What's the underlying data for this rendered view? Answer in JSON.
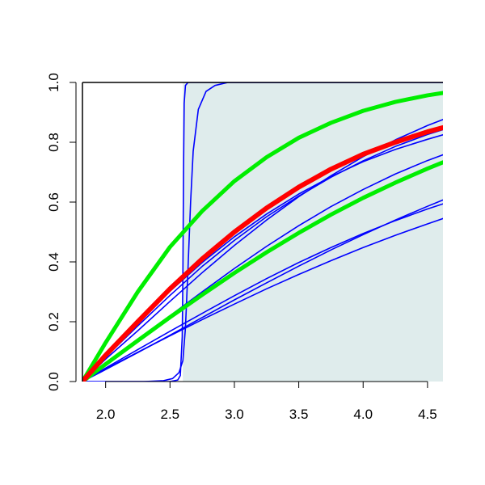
{
  "chart_data": {
    "type": "line",
    "xlim": [
      1.82,
      4.62
    ],
    "ylim": [
      0,
      1
    ],
    "x_ticks": [
      {
        "value": 2.0,
        "label": "2.0"
      },
      {
        "value": 2.5,
        "label": "2.5"
      },
      {
        "value": 3.0,
        "label": "3.0"
      },
      {
        "value": 3.5,
        "label": "3.5"
      },
      {
        "value": 4.0,
        "label": "4.0"
      },
      {
        "value": 4.5,
        "label": "4.5"
      }
    ],
    "y_ticks": [
      {
        "value": 0.0,
        "label": "0.0"
      },
      {
        "value": 0.2,
        "label": "0.2"
      },
      {
        "value": 0.4,
        "label": "0.4"
      },
      {
        "value": 0.6,
        "label": "0.6"
      },
      {
        "value": 0.8,
        "label": "0.8"
      },
      {
        "value": 1.0,
        "label": "1.0"
      }
    ],
    "shaded_region": {
      "x_from": 2.6,
      "x_to": 4.62,
      "y_from": 0,
      "y_to": 1,
      "color": "#dfecec"
    },
    "grid": false,
    "series": [
      {
        "color": "#0000ff",
        "width": 1.6,
        "points": [
          [
            1.82,
            0
          ],
          [
            2.3,
            0
          ],
          [
            2.5,
            0.0
          ],
          [
            2.56,
            0.005
          ],
          [
            2.58,
            0.02
          ],
          [
            2.595,
            0.15
          ],
          [
            2.6,
            0.35
          ],
          [
            2.605,
            0.7
          ],
          [
            2.61,
            0.93
          ],
          [
            2.62,
            0.99
          ],
          [
            2.64,
            1.0
          ],
          [
            4.62,
            1.0
          ]
        ]
      },
      {
        "color": "#0000ff",
        "width": 1.6,
        "points": [
          [
            1.82,
            0
          ],
          [
            2.3,
            0.0
          ],
          [
            2.45,
            0.003
          ],
          [
            2.52,
            0.01
          ],
          [
            2.57,
            0.03
          ],
          [
            2.6,
            0.07
          ],
          [
            2.62,
            0.18
          ],
          [
            2.64,
            0.38
          ],
          [
            2.66,
            0.6
          ],
          [
            2.68,
            0.77
          ],
          [
            2.72,
            0.91
          ],
          [
            2.78,
            0.97
          ],
          [
            2.85,
            0.99
          ],
          [
            2.95,
            1.0
          ],
          [
            4.62,
            1.0
          ]
        ]
      },
      {
        "color": "#0000ff",
        "width": 1.6,
        "points": [
          [
            1.82,
            0
          ],
          [
            2.0,
            0.087
          ],
          [
            2.25,
            0.197
          ],
          [
            2.5,
            0.302
          ],
          [
            2.75,
            0.398
          ],
          [
            3.0,
            0.484
          ],
          [
            3.25,
            0.56
          ],
          [
            3.5,
            0.627
          ],
          [
            3.75,
            0.685
          ],
          [
            4.0,
            0.735
          ],
          [
            4.25,
            0.776
          ],
          [
            4.5,
            0.81
          ],
          [
            4.62,
            0.825
          ]
        ]
      },
      {
        "color": "#0000ff",
        "width": 1.6,
        "points": [
          [
            1.82,
            0
          ],
          [
            2.0,
            0.082
          ],
          [
            2.25,
            0.186
          ],
          [
            2.5,
            0.288
          ],
          [
            2.75,
            0.385
          ],
          [
            3.0,
            0.472
          ],
          [
            3.25,
            0.551
          ],
          [
            3.5,
            0.62
          ],
          [
            3.75,
            0.683
          ],
          [
            4.0,
            0.738
          ],
          [
            4.25,
            0.786
          ],
          [
            4.5,
            0.826
          ],
          [
            4.62,
            0.842
          ]
        ]
      },
      {
        "color": "#0000ff",
        "width": 1.6,
        "points": [
          [
            1.82,
            0
          ],
          [
            2.0,
            0.075
          ],
          [
            2.25,
            0.17
          ],
          [
            2.5,
            0.268
          ],
          [
            2.75,
            0.364
          ],
          [
            3.0,
            0.455
          ],
          [
            3.25,
            0.54
          ],
          [
            3.5,
            0.618
          ],
          [
            3.75,
            0.688
          ],
          [
            4.0,
            0.752
          ],
          [
            4.25,
            0.808
          ],
          [
            4.5,
            0.856
          ],
          [
            4.62,
            0.876
          ]
        ]
      },
      {
        "color": "#0000ff",
        "width": 1.6,
        "points": [
          [
            1.82,
            0
          ],
          [
            2.0,
            0.04
          ],
          [
            2.25,
            0.097
          ],
          [
            2.5,
            0.155
          ],
          [
            2.75,
            0.214
          ],
          [
            3.0,
            0.273
          ],
          [
            3.25,
            0.33
          ],
          [
            3.5,
            0.386
          ],
          [
            3.75,
            0.44
          ],
          [
            4.0,
            0.491
          ],
          [
            4.25,
            0.54
          ],
          [
            4.5,
            0.586
          ],
          [
            4.62,
            0.607
          ]
        ]
      },
      {
        "color": "#0000ff",
        "width": 1.6,
        "points": [
          [
            1.82,
            0
          ],
          [
            2.0,
            0.045
          ],
          [
            2.25,
            0.107
          ],
          [
            2.5,
            0.168
          ],
          [
            2.75,
            0.228
          ],
          [
            3.0,
            0.287
          ],
          [
            3.25,
            0.344
          ],
          [
            3.5,
            0.398
          ],
          [
            3.75,
            0.448
          ],
          [
            4.0,
            0.495
          ],
          [
            4.25,
            0.538
          ],
          [
            4.5,
            0.577
          ],
          [
            4.62,
            0.594
          ]
        ]
      },
      {
        "color": "#0000ff",
        "width": 1.6,
        "points": [
          [
            1.82,
            0
          ],
          [
            2.0,
            0.06
          ],
          [
            2.25,
            0.14
          ],
          [
            2.5,
            0.22
          ],
          [
            2.75,
            0.3
          ],
          [
            3.0,
            0.378
          ],
          [
            3.25,
            0.452
          ],
          [
            3.5,
            0.521
          ],
          [
            3.75,
            0.585
          ],
          [
            4.0,
            0.642
          ],
          [
            4.25,
            0.694
          ],
          [
            4.5,
            0.739
          ],
          [
            4.62,
            0.758
          ]
        ]
      },
      {
        "color": "#0000ff",
        "width": 1.6,
        "points": [
          [
            1.82,
            0
          ],
          [
            2.0,
            0.042
          ],
          [
            2.25,
            0.098
          ],
          [
            2.5,
            0.153
          ],
          [
            2.75,
            0.207
          ],
          [
            3.0,
            0.259
          ],
          [
            3.25,
            0.31
          ],
          [
            3.5,
            0.358
          ],
          [
            3.75,
            0.404
          ],
          [
            4.0,
            0.448
          ],
          [
            4.25,
            0.489
          ],
          [
            4.5,
            0.527
          ],
          [
            4.62,
            0.545
          ]
        ]
      },
      {
        "color": "#00ee00",
        "width": 5,
        "points": [
          [
            1.82,
            0
          ],
          [
            2.0,
            0.13
          ],
          [
            2.25,
            0.3
          ],
          [
            2.5,
            0.45
          ],
          [
            2.75,
            0.57
          ],
          [
            3.0,
            0.67
          ],
          [
            3.25,
            0.75
          ],
          [
            3.5,
            0.815
          ],
          [
            3.75,
            0.865
          ],
          [
            4.0,
            0.905
          ],
          [
            4.25,
            0.935
          ],
          [
            4.5,
            0.957
          ],
          [
            4.62,
            0.965
          ]
        ]
      },
      {
        "color": "#00ee00",
        "width": 5,
        "points": [
          [
            1.82,
            0
          ],
          [
            2.0,
            0.058
          ],
          [
            2.25,
            0.137
          ],
          [
            2.5,
            0.215
          ],
          [
            2.75,
            0.29
          ],
          [
            3.0,
            0.363
          ],
          [
            3.25,
            0.432
          ],
          [
            3.5,
            0.497
          ],
          [
            3.75,
            0.558
          ],
          [
            4.0,
            0.614
          ],
          [
            4.25,
            0.665
          ],
          [
            4.5,
            0.712
          ],
          [
            4.62,
            0.733
          ]
        ]
      },
      {
        "color": "#ff0000",
        "width": 6,
        "points": [
          [
            1.82,
            0
          ],
          [
            2.0,
            0.088
          ],
          [
            2.25,
            0.2
          ],
          [
            2.5,
            0.31
          ],
          [
            2.75,
            0.41
          ],
          [
            3.0,
            0.5
          ],
          [
            3.25,
            0.58
          ],
          [
            3.5,
            0.65
          ],
          [
            3.75,
            0.71
          ],
          [
            4.0,
            0.76
          ],
          [
            4.25,
            0.8
          ],
          [
            4.5,
            0.835
          ],
          [
            4.62,
            0.849
          ]
        ]
      }
    ]
  }
}
